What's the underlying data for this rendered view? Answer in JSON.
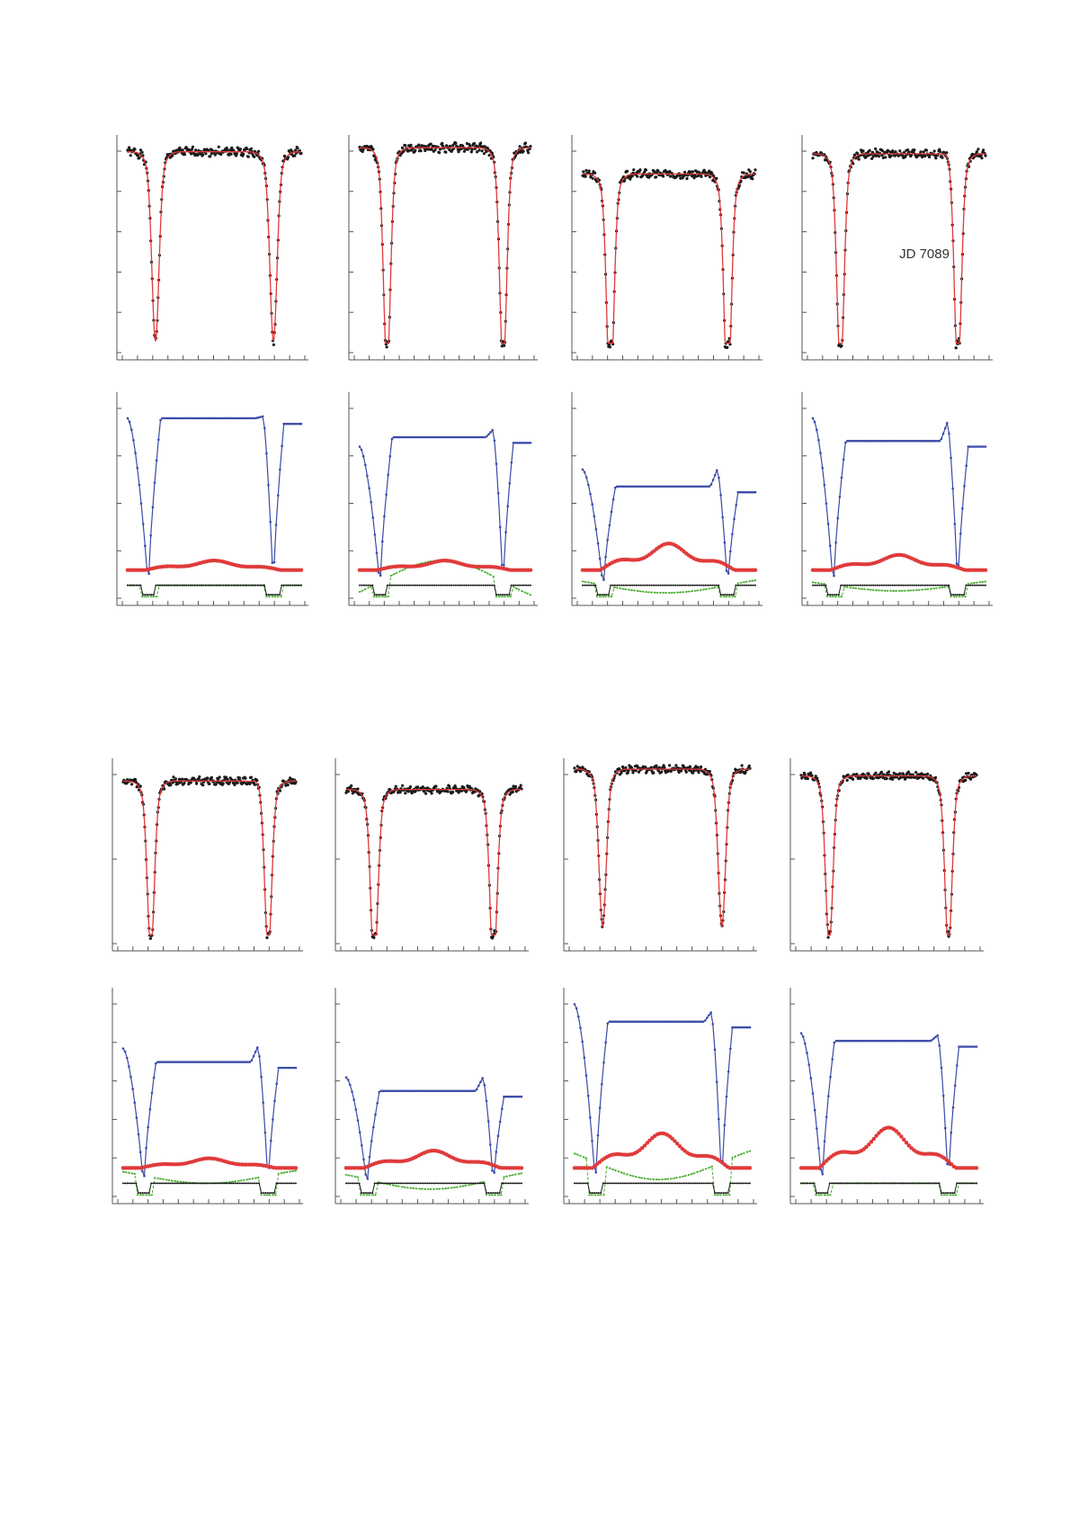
{
  "colors": {
    "observed": "#1a1a1a",
    "fit": "#e03a3a",
    "model_blue": "#3a4aa8",
    "model_red": "#e03a3a",
    "model_green": "#4caf32",
    "model_black": "#1a1a1a"
  },
  "chart_data": [
    {
      "id": "r1c1",
      "type": "line",
      "row": "profile",
      "annotation": "",
      "y_axis": {
        "ticks": 6
      },
      "x_axis": {
        "ticks": 12
      },
      "series": [
        {
          "style": "observed-dots"
        },
        {
          "style": "fit-line"
        }
      ],
      "cont": 0.97,
      "depth": [
        0.82,
        0.82
      ],
      "hornL": 0,
      "hornR": 0,
      "seed": 1
    },
    {
      "id": "r1c2",
      "type": "line",
      "row": "profile",
      "annotation": "",
      "y_axis": {
        "ticks": 6
      },
      "x_axis": {
        "ticks": 12
      },
      "series": [
        {
          "style": "observed-dots"
        },
        {
          "style": "fit-line"
        }
      ],
      "cont": 0.99,
      "depth": [
        0.97,
        0.97
      ],
      "hornL": 0,
      "hornR": 0,
      "seed": 2
    },
    {
      "id": "r1c3",
      "type": "line",
      "row": "profile",
      "annotation": "",
      "y_axis": {
        "ticks": 6
      },
      "x_axis": {
        "ticks": 12
      },
      "series": [
        {
          "style": "observed-dots"
        },
        {
          "style": "fit-line"
        }
      ],
      "cont": 0.86,
      "depth": [
        1.0,
        1.0
      ],
      "hornL": 0,
      "hornR": 0,
      "seed": 3
    },
    {
      "id": "r1c4",
      "type": "line",
      "row": "profile",
      "annotation": "JD 7089",
      "y_axis": {
        "ticks": 6
      },
      "x_axis": {
        "ticks": 12
      },
      "series": [
        {
          "style": "observed-dots"
        },
        {
          "style": "fit-line"
        }
      ],
      "cont": 0.96,
      "depth": [
        0.96,
        0.96
      ],
      "hornL": 0,
      "hornR": 0.03,
      "seed": 4
    },
    {
      "id": "r2c1",
      "type": "line",
      "row": "components",
      "annotation": "",
      "y_axis": {
        "ticks": 5
      },
      "x_axis": {
        "ticks": 12
      },
      "series": [
        {
          "style": "blue"
        },
        {
          "style": "red"
        },
        {
          "style": "green"
        },
        {
          "style": "black"
        }
      ],
      "blue": {
        "start": 0.92,
        "cont": 0.92,
        "hornR": 0.01
      },
      "red": {
        "base": 0.12,
        "bump": 0.05
      },
      "green": {
        "amp": 0.0,
        "level": 0.04
      },
      "seed": 5
    },
    {
      "id": "r2c2",
      "type": "line",
      "row": "components",
      "annotation": "",
      "y_axis": {
        "ticks": 5
      },
      "x_axis": {
        "ticks": 12
      },
      "series": [
        {
          "style": "blue"
        },
        {
          "style": "red"
        },
        {
          "style": "green"
        },
        {
          "style": "black"
        }
      ],
      "blue": {
        "start": 0.77,
        "cont": 0.82,
        "hornR": 0.04
      },
      "red": {
        "base": 0.12,
        "bump": 0.05
      },
      "green": {
        "amp": 0.11,
        "level": 0.06
      },
      "seed": 6
    },
    {
      "id": "r2c3",
      "type": "line",
      "row": "components",
      "annotation": "",
      "y_axis": {
        "ticks": 5
      },
      "x_axis": {
        "ticks": 12
      },
      "series": [
        {
          "style": "blue"
        },
        {
          "style": "red"
        },
        {
          "style": "green"
        },
        {
          "style": "black"
        }
      ],
      "blue": {
        "start": 0.65,
        "cont": 0.56,
        "hornR": 0.09
      },
      "red": {
        "base": 0.12,
        "bump": 0.14
      },
      "green": {
        "amp": -0.04,
        "level": 0.04
      },
      "seed": 7
    },
    {
      "id": "r2c4",
      "type": "line",
      "row": "components",
      "annotation": "",
      "y_axis": {
        "ticks": 5
      },
      "x_axis": {
        "ticks": 12
      },
      "series": [
        {
          "style": "blue"
        },
        {
          "style": "red"
        },
        {
          "style": "green"
        },
        {
          "style": "black"
        }
      ],
      "blue": {
        "start": 0.92,
        "cont": 0.8,
        "hornR": 0.1
      },
      "red": {
        "base": 0.12,
        "bump": 0.08
      },
      "green": {
        "amp": -0.03,
        "level": 0.04
      },
      "seed": 8
    },
    {
      "id": "r3c1",
      "type": "line",
      "row": "profile",
      "annotation": "",
      "y_axis": {
        "ticks": 3
      },
      "x_axis": {
        "ticks": 12
      },
      "series": [
        {
          "style": "observed-dots"
        },
        {
          "style": "fit-line"
        }
      ],
      "cont": 0.93,
      "depth": [
        0.88,
        0.88
      ],
      "hornL": 0,
      "hornR": 0.03,
      "seed": 9
    },
    {
      "id": "r3c2",
      "type": "line",
      "row": "profile",
      "annotation": "",
      "y_axis": {
        "ticks": 3
      },
      "x_axis": {
        "ticks": 12
      },
      "series": [
        {
          "style": "observed-dots"
        },
        {
          "style": "fit-line"
        }
      ],
      "cont": 0.88,
      "depth": [
        0.93,
        0.93
      ],
      "hornL": 0,
      "hornR": 0,
      "seed": 10
    },
    {
      "id": "r3c3",
      "type": "line",
      "row": "profile",
      "annotation": "",
      "y_axis": {
        "ticks": 3
      },
      "x_axis": {
        "ticks": 12
      },
      "series": [
        {
          "style": "observed-dots"
        },
        {
          "style": "fit-line"
        }
      ],
      "cont": 1.0,
      "depth": [
        0.81,
        0.81
      ],
      "hornL": 0,
      "hornR": 0,
      "seed": 11
    },
    {
      "id": "r3c4",
      "type": "line",
      "row": "profile",
      "annotation": "",
      "y_axis": {
        "ticks": 3
      },
      "x_axis": {
        "ticks": 12
      },
      "series": [
        {
          "style": "observed-dots"
        },
        {
          "style": "fit-line"
        }
      ],
      "cont": 0.96,
      "depth": [
        0.88,
        0.88
      ],
      "hornL": 0,
      "hornR": 0,
      "seed": 12
    },
    {
      "id": "r4c1",
      "type": "line",
      "row": "components",
      "annotation": "",
      "y_axis": {
        "ticks": 6
      },
      "x_axis": {
        "ticks": 12
      },
      "series": [
        {
          "style": "blue"
        },
        {
          "style": "red"
        },
        {
          "style": "green"
        },
        {
          "style": "black"
        }
      ],
      "blue": {
        "start": 0.74,
        "cont": 0.67,
        "hornR": 0.08
      },
      "red": {
        "base": 0.12,
        "bump": 0.05
      },
      "green": {
        "amp": -0.04,
        "level": 0.08
      },
      "seed": 13
    },
    {
      "id": "r4c2",
      "type": "line",
      "row": "components",
      "annotation": "",
      "y_axis": {
        "ticks": 6
      },
      "x_axis": {
        "ticks": 12
      },
      "series": [
        {
          "style": "blue"
        },
        {
          "style": "red"
        },
        {
          "style": "green"
        },
        {
          "style": "black"
        }
      ],
      "blue": {
        "start": 0.59,
        "cont": 0.52,
        "hornR": 0.07
      },
      "red": {
        "base": 0.12,
        "bump": 0.09
      },
      "green": {
        "amp": -0.05,
        "level": 0.06
      },
      "seed": 14
    },
    {
      "id": "r4c3",
      "type": "line",
      "row": "components",
      "annotation": "",
      "y_axis": {
        "ticks": 6
      },
      "x_axis": {
        "ticks": 12
      },
      "series": [
        {
          "style": "blue"
        },
        {
          "style": "red"
        },
        {
          "style": "green"
        },
        {
          "style": "black"
        }
      ],
      "blue": {
        "start": 0.97,
        "cont": 0.88,
        "hornR": 0.05
      },
      "red": {
        "base": 0.12,
        "bump": 0.18
      },
      "green": {
        "amp": -0.09,
        "level": 0.15
      },
      "seed": 15
    },
    {
      "id": "r4c4",
      "type": "line",
      "row": "components",
      "annotation": "",
      "y_axis": {
        "ticks": 6
      },
      "x_axis": {
        "ticks": 12
      },
      "series": [
        {
          "style": "blue"
        },
        {
          "style": "red"
        },
        {
          "style": "green"
        },
        {
          "style": "black"
        }
      ],
      "blue": {
        "start": 0.82,
        "cont": 0.78,
        "hornR": 0.03
      },
      "red": {
        "base": 0.12,
        "bump": 0.21
      },
      "green": {
        "amp": 0.0,
        "level": 0.04
      },
      "seed": 16
    }
  ]
}
